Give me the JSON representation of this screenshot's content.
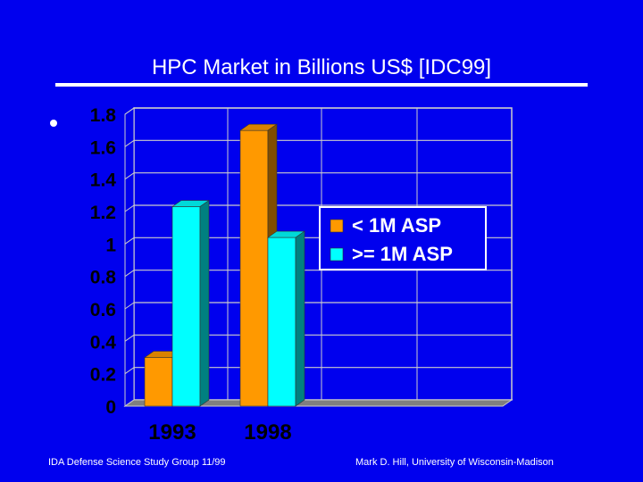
{
  "slide": {
    "title": "HPC Market in Billions US$ [IDC99]",
    "footer_left": "IDA Defense Science Study Group 11/99",
    "footer_right": "Mark D. Hill, University of Wisconsin-Madison"
  },
  "chart_data": {
    "type": "bar",
    "categories": [
      "1993",
      "1998"
    ],
    "series": [
      {
        "name": "< 1M ASP",
        "values": [
          0.3,
          1.7
        ],
        "color": "#ff9900"
      },
      {
        "name": ">= 1M ASP",
        "values": [
          1.23,
          1.04
        ],
        "color": "#00ffff"
      }
    ],
    "y_ticks": [
      "0",
      "0.2",
      "0.4",
      "0.6",
      "0.8",
      "1",
      "1.2",
      "1.4",
      "1.6",
      "1.8"
    ],
    "ylim": [
      0,
      1.8
    ],
    "grid": true,
    "legend_position": "center-right",
    "colors": {
      "background": "#0000ee",
      "plot_wall": "#0000ee",
      "floor": "#7f7f7f",
      "grid": "#cccccc",
      "text": "#ffffff",
      "tick_text": "#000000"
    }
  }
}
